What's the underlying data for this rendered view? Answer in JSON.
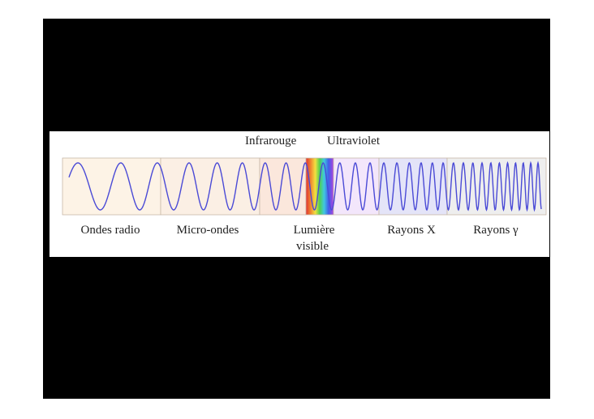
{
  "top_labels": {
    "infrared": "Infrarouge",
    "ultraviolet": "Ultraviolet"
  },
  "bands": [
    {
      "key": "radio",
      "label": "Ondes radio",
      "color": "#fdf3e6"
    },
    {
      "key": "micro",
      "label": "Micro-ondes",
      "color": "#fbefe4"
    },
    {
      "key": "ir",
      "label": "",
      "color": "#fbe7dc"
    },
    {
      "key": "visible",
      "label_line1": "Lumière",
      "label_line2": "visible",
      "color": "rainbow"
    },
    {
      "key": "uv",
      "label": "",
      "color": "#f3e6fb"
    },
    {
      "key": "xray",
      "label": "Rayons X",
      "color": "#e4e4f8"
    },
    {
      "key": "gamma",
      "label": "Rayons γ",
      "color": "#eeeeee"
    }
  ],
  "colors": {
    "wave": "#4a4ad6",
    "band_border": "#c8b8a8",
    "slide_background": "#000000"
  }
}
